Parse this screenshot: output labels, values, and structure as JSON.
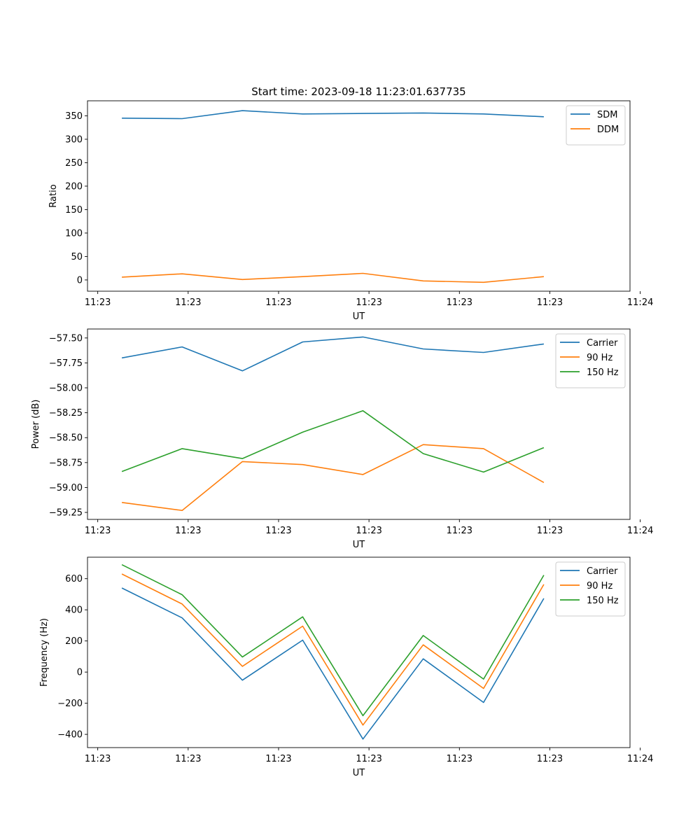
{
  "chart_data": [
    {
      "type": "line",
      "title": "Start time: 2023-09-18 11:23:01.637735",
      "xlabel": "UT",
      "ylabel": "Ratio",
      "x": [
        1,
        2,
        3,
        4,
        5,
        6,
        7,
        8
      ],
      "xlim": [
        0.43,
        9.43
      ],
      "xticks": [
        0.6,
        2.1,
        3.6,
        5.1,
        6.6,
        8.1,
        9.6
      ],
      "xtick_labels": [
        "11:23",
        "11:23",
        "11:23",
        "11:23",
        "11:23",
        "11:23",
        "11:24"
      ],
      "ylim": [
        -24,
        382
      ],
      "yticks": [
        0,
        50,
        100,
        150,
        200,
        250,
        300,
        350
      ],
      "ytick_labels": [
        "0",
        "50",
        "100",
        "150",
        "200",
        "250",
        "300",
        "350"
      ],
      "legend_position": "top-right",
      "series": [
        {
          "name": "SDM",
          "color": "#1f77b4",
          "values": [
            345,
            344,
            361,
            354,
            355,
            356,
            354,
            348
          ]
        },
        {
          "name": "DDM",
          "color": "#ff7f0e",
          "values": [
            6,
            13,
            1,
            7,
            14,
            -2,
            -5,
            7
          ]
        }
      ]
    },
    {
      "type": "line",
      "title": "",
      "xlabel": "UT",
      "ylabel": "Power (dB)",
      "x": [
        1,
        2,
        3,
        4,
        5,
        6,
        7,
        8
      ],
      "xlim": [
        0.43,
        9.43
      ],
      "xticks": [
        0.6,
        2.1,
        3.6,
        5.1,
        6.6,
        8.1,
        9.6
      ],
      "xtick_labels": [
        "11:23",
        "11:23",
        "11:23",
        "11:23",
        "11:23",
        "11:23",
        "11:24"
      ],
      "ylim": [
        -59.32,
        -57.41
      ],
      "yticks": [
        -57.5,
        -57.75,
        -58.0,
        -58.25,
        -58.5,
        -58.75,
        -59.0,
        -59.25
      ],
      "ytick_labels": [
        "−57.50",
        "−57.75",
        "−58.00",
        "−58.25",
        "−58.50",
        "−58.75",
        "−59.00",
        "−59.25"
      ],
      "legend_position": "top-right",
      "series": [
        {
          "name": "Carrier",
          "color": "#1f77b4",
          "values": [
            -57.7,
            -57.59,
            -57.83,
            -57.54,
            -57.49,
            -57.61,
            -57.645,
            -57.56
          ]
        },
        {
          "name": "90 Hz",
          "color": "#ff7f0e",
          "values": [
            -59.15,
            -59.23,
            -58.74,
            -58.77,
            -58.87,
            -58.57,
            -58.61,
            -58.95
          ]
        },
        {
          "name": "150 Hz",
          "color": "#2ca02c",
          "values": [
            -58.84,
            -58.61,
            -58.71,
            -58.445,
            -58.23,
            -58.66,
            -58.845,
            -58.6
          ]
        }
      ]
    },
    {
      "type": "line",
      "title": "",
      "xlabel": "UT",
      "ylabel": "Frequency (Hz)",
      "x": [
        1,
        2,
        3,
        4,
        5,
        6,
        7,
        8
      ],
      "xlim": [
        0.43,
        9.43
      ],
      "xticks": [
        0.6,
        2.1,
        3.6,
        5.1,
        6.6,
        8.1,
        9.6
      ],
      "xtick_labels": [
        "11:23",
        "11:23",
        "11:23",
        "11:23",
        "11:23",
        "11:23",
        "11:24"
      ],
      "ylim": [
        -485,
        738
      ],
      "yticks": [
        -400,
        -200,
        0,
        200,
        400,
        600
      ],
      "ytick_labels": [
        "−400",
        "−200",
        "0",
        "200",
        "400",
        "600"
      ],
      "legend_position": "top-right",
      "series": [
        {
          "name": "Carrier",
          "color": "#1f77b4",
          "values": [
            540,
            348,
            -52,
            205,
            -430,
            85,
            -195,
            473
          ]
        },
        {
          "name": "90 Hz",
          "color": "#ff7f0e",
          "values": [
            630,
            437,
            37,
            295,
            -340,
            175,
            -105,
            563
          ]
        },
        {
          "name": "150 Hz",
          "color": "#2ca02c",
          "values": [
            690,
            497,
            97,
            355,
            -280,
            235,
            -45,
            623
          ]
        }
      ]
    }
  ]
}
